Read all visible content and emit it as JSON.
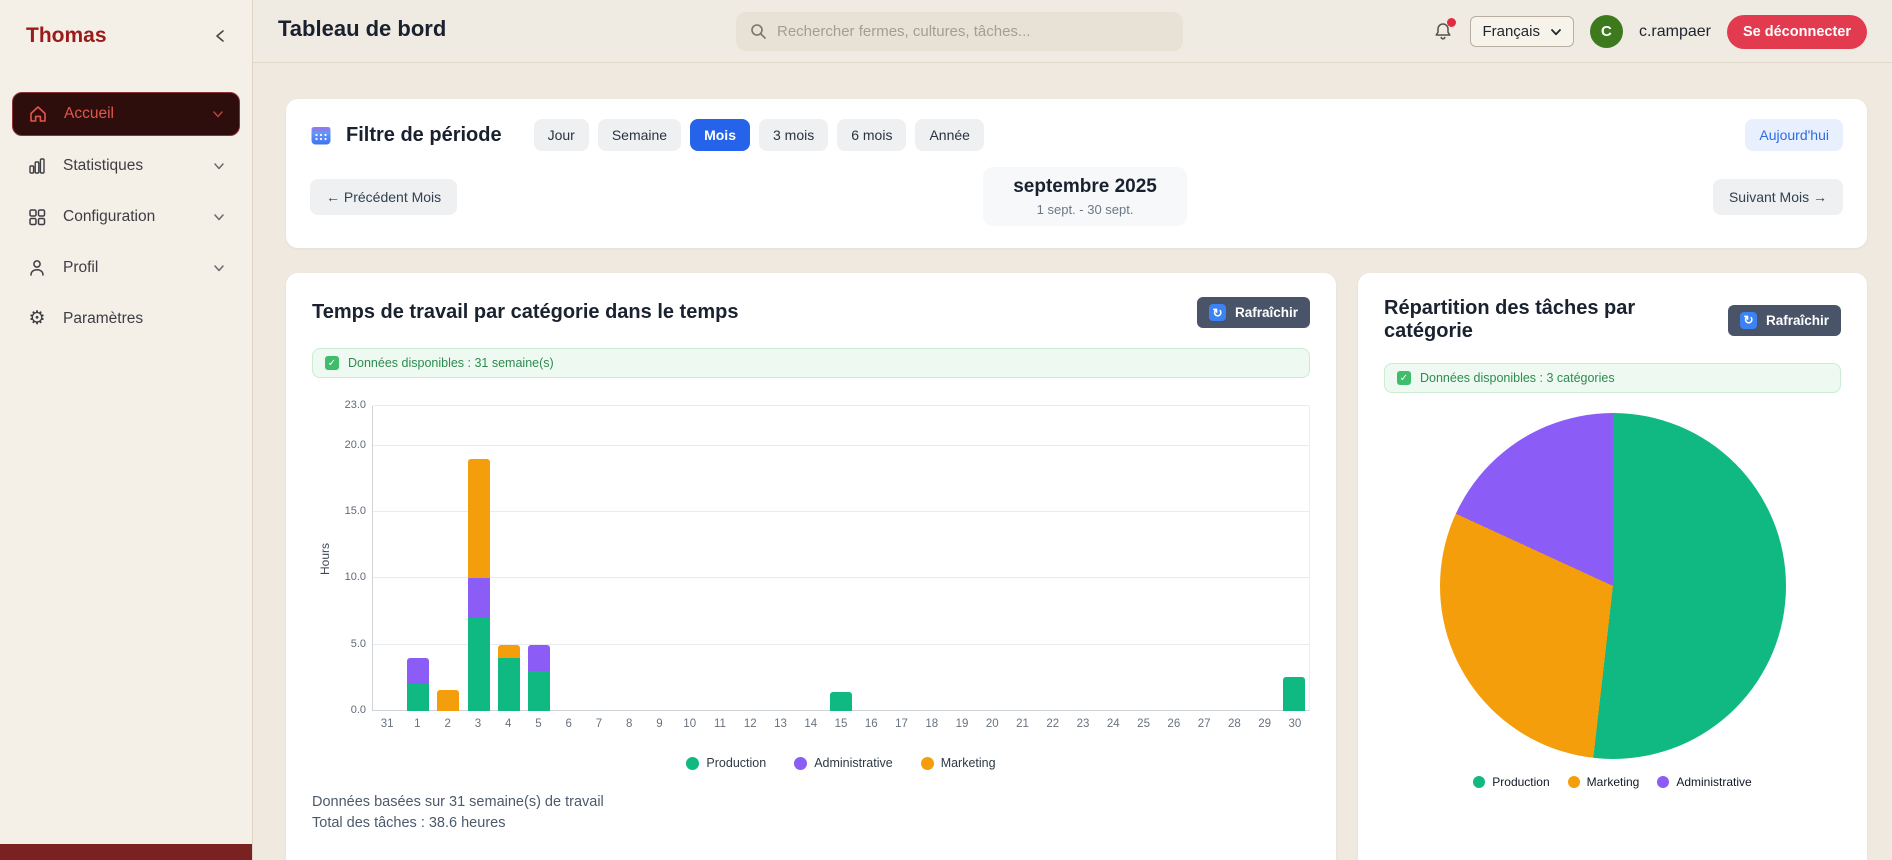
{
  "sidebar": {
    "brand": "Thomas",
    "items": [
      {
        "label": "Accueil",
        "icon": "home-icon",
        "active": true
      },
      {
        "label": "Statistiques",
        "icon": "bar-chart-icon",
        "active": false
      },
      {
        "label": "Configuration",
        "icon": "grid-icon",
        "active": false
      },
      {
        "label": "Profil",
        "icon": "user-icon",
        "active": false
      },
      {
        "label": "Paramètres",
        "icon": "gear-icon",
        "active": false
      }
    ]
  },
  "header": {
    "title": "Tableau de bord",
    "search_placeholder": "Rechercher fermes, cultures, tâches...",
    "language": "Français",
    "avatar_initial": "C",
    "username": "c.rampaer",
    "logout_label": "Se déconnecter"
  },
  "period_filter": {
    "title": "Filtre de période",
    "options": [
      "Jour",
      "Semaine",
      "Mois",
      "3 mois",
      "6 mois",
      "Année"
    ],
    "active_option": "Mois",
    "today_label": "Aujourd'hui",
    "prev_label": "← Précédent Mois",
    "next_label": "Suivant Mois →",
    "current_period": "septembre 2025",
    "period_range": "1 sept. - 30 sept."
  },
  "time_chart_card": {
    "title": "Temps de travail par catégorie dans le temps",
    "refresh_label": "Rafraîchir",
    "banner": "Données disponibles : 31 semaine(s)",
    "footer_line1": "Données basées sur 31 semaine(s) de travail",
    "footer_line2": "Total des tâches : 38.6 heures"
  },
  "pie_card": {
    "title": "Répartition des tâches par catégorie",
    "refresh_label": "Rafraîchir",
    "banner": "Données disponibles : 3 catégories"
  },
  "icons": {
    "refresh": "↻",
    "check": "✓",
    "gear": "⚙"
  },
  "colors": {
    "brand_maroon": "#9b1b1b",
    "active_item_bg": "#2e0d0d",
    "active_item_text": "#e2574c",
    "accent_blue": "#2563eb",
    "logout_red": "#e23a4e",
    "avatar_green": "#3c7a1d",
    "banner_green": "#2e8b4f",
    "production": "#10b981",
    "administrative": "#8b5cf6",
    "marketing": "#f59e0b"
  },
  "chart_data": [
    {
      "type": "bar",
      "stacked": true,
      "title": "Temps de travail par catégorie dans le temps",
      "xlabel": "",
      "ylabel": "Hours",
      "ylim": [
        0,
        23
      ],
      "yticks": [
        0,
        5,
        10,
        15,
        20,
        23
      ],
      "grid": true,
      "legend_position": "bottom",
      "categories": [
        "31",
        "1",
        "2",
        "3",
        "4",
        "5",
        "6",
        "7",
        "8",
        "9",
        "10",
        "11",
        "12",
        "13",
        "14",
        "15",
        "16",
        "17",
        "18",
        "19",
        "20",
        "21",
        "22",
        "23",
        "24",
        "25",
        "26",
        "27",
        "28",
        "29",
        "30"
      ],
      "series": [
        {
          "name": "Production",
          "color": "#10b981",
          "values": [
            0,
            2.0,
            0,
            7.0,
            4.0,
            3.0,
            0,
            0,
            0,
            0,
            0,
            0,
            0,
            0,
            0,
            1.4,
            0,
            0,
            0,
            0,
            0,
            0,
            0,
            0,
            0,
            0,
            0,
            0,
            0,
            0,
            2.6
          ]
        },
        {
          "name": "Administrative",
          "color": "#8b5cf6",
          "values": [
            0,
            2.0,
            0,
            3.0,
            0,
            2.0,
            0,
            0,
            0,
            0,
            0,
            0,
            0,
            0,
            0,
            0,
            0,
            0,
            0,
            0,
            0,
            0,
            0,
            0,
            0,
            0,
            0,
            0,
            0,
            0,
            0
          ]
        },
        {
          "name": "Marketing",
          "color": "#f59e0b",
          "values": [
            0,
            0,
            1.6,
            9.0,
            1.0,
            0,
            0,
            0,
            0,
            0,
            0,
            0,
            0,
            0,
            0,
            0,
            0,
            0,
            0,
            0,
            0,
            0,
            0,
            0,
            0,
            0,
            0,
            0,
            0,
            0,
            0
          ]
        }
      ],
      "legend": [
        "Production",
        "Administrative",
        "Marketing"
      ],
      "total_hours": 38.6
    },
    {
      "type": "pie",
      "title": "Répartition des tâches par catégorie",
      "labels": [
        "Production",
        "Marketing",
        "Administrative"
      ],
      "values": [
        20.0,
        11.6,
        7.0
      ],
      "percents": [
        51.8,
        30.1,
        18.1
      ],
      "colors": [
        "#10b981",
        "#f59e0b",
        "#8b5cf6"
      ],
      "start_angle_deg": 0,
      "legend_position": "bottom"
    }
  ]
}
